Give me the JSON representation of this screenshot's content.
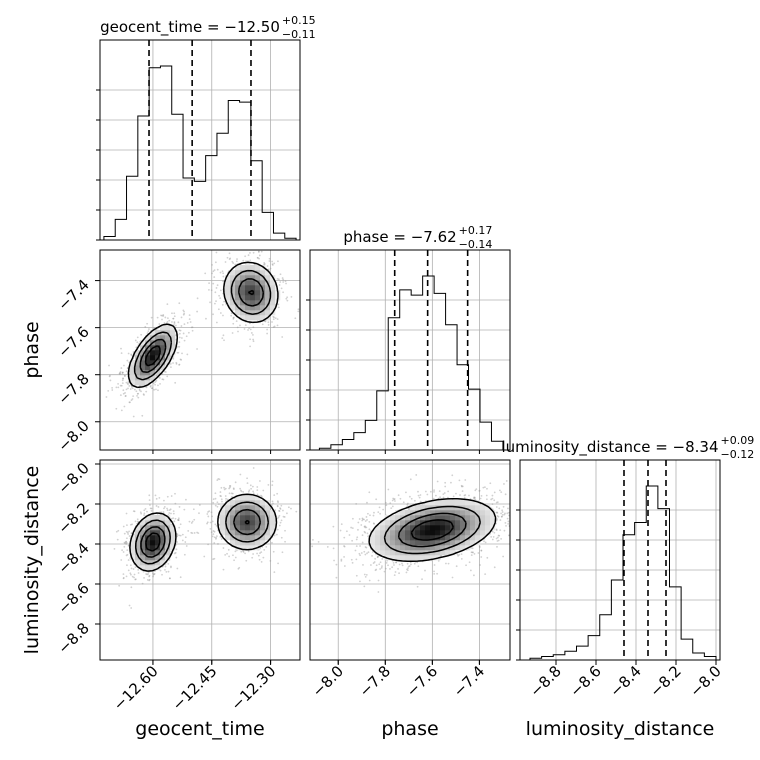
{
  "chart_data": {
    "type": "corner",
    "parameters": [
      {
        "key": "geocent_time",
        "label": "geocent_time",
        "title_main": "geocent_time = −12.50",
        "title_plus": "+0.15",
        "title_minus": "−0.11",
        "range": [
          -12.735,
          -12.225
        ],
        "ticks": [
          -12.6,
          -12.45,
          -12.3
        ],
        "tick_labels": [
          "−12.60",
          "−12.45",
          "−12.30"
        ],
        "quantiles": [
          -12.61,
          -12.5,
          -12.35
        ],
        "hist": [
          0.02,
          0.12,
          0.37,
          0.72,
          1.0,
          1.01,
          0.73,
          0.36,
          0.34,
          0.49,
          0.62,
          0.81,
          0.8,
          0.46,
          0.16,
          0.04,
          0.01
        ],
        "hist_range": [
          -12.725,
          -12.235
        ]
      },
      {
        "key": "phase",
        "label": "phase",
        "title_main": "phase = −7.62",
        "title_plus": "+0.17",
        "title_minus": "−0.14",
        "range": [
          -8.12,
          -7.27
        ],
        "ticks": [
          -8.0,
          -7.8,
          -7.6,
          -7.4
        ],
        "tick_labels": [
          "−8.0",
          "−7.8",
          "−7.6",
          "−7.4"
        ],
        "quantiles": [
          -7.76,
          -7.62,
          -7.45
        ],
        "hist": [
          0.01,
          0.03,
          0.06,
          0.1,
          0.17,
          0.34,
          0.76,
          0.92,
          0.89,
          1.0,
          0.9,
          0.72,
          0.49,
          0.35,
          0.16,
          0.05
        ],
        "hist_range": [
          -8.08,
          -7.3
        ]
      },
      {
        "key": "luminosity_distance",
        "label": "luminosity_distance",
        "title_main": "luminosity_distance = −8.34",
        "title_plus": "+0.09",
        "title_minus": "−0.12",
        "range": [
          -8.98,
          -7.98
        ],
        "ticks": [
          -8.8,
          -8.6,
          -8.4,
          -8.2,
          -8.0
        ],
        "tick_labels": [
          "−8.8",
          "−8.6",
          "−8.4",
          "−8.2",
          "−8.0"
        ],
        "quantiles": [
          -8.46,
          -8.34,
          -8.25
        ],
        "hist": [
          0.01,
          0.02,
          0.03,
          0.05,
          0.08,
          0.14,
          0.26,
          0.46,
          0.72,
          0.79,
          1.0,
          0.87,
          0.42,
          0.12,
          0.04,
          0.02
        ],
        "hist_range": [
          -8.93,
          -8.0
        ]
      }
    ],
    "pairs": [
      {
        "x": "geocent_time",
        "y": "phase",
        "modes": [
          {
            "cx": -12.6,
            "cy": -7.72,
            "sx": 0.03,
            "sy": 0.065,
            "rho": 0.6,
            "w": 0.55
          },
          {
            "cx": -12.35,
            "cy": -7.45,
            "sx": 0.035,
            "sy": 0.065,
            "rho": -0.1,
            "w": 0.45
          }
        ]
      },
      {
        "x": "geocent_time",
        "y": "luminosity_distance",
        "modes": [
          {
            "cx": -12.6,
            "cy": -8.39,
            "sx": 0.028,
            "sy": 0.07,
            "rho": 0.2,
            "w": 0.55
          },
          {
            "cx": -12.36,
            "cy": -8.29,
            "sx": 0.038,
            "sy": 0.07,
            "rho": 0.0,
            "w": 0.45
          }
        ]
      },
      {
        "x": "phase",
        "y": "luminosity_distance",
        "modes": [
          {
            "cx": -7.6,
            "cy": -8.33,
            "sx": 0.13,
            "sy": 0.075,
            "rho": 0.35,
            "w": 1.0
          }
        ]
      }
    ],
    "grid": true,
    "quantile_lines": "dashed"
  }
}
